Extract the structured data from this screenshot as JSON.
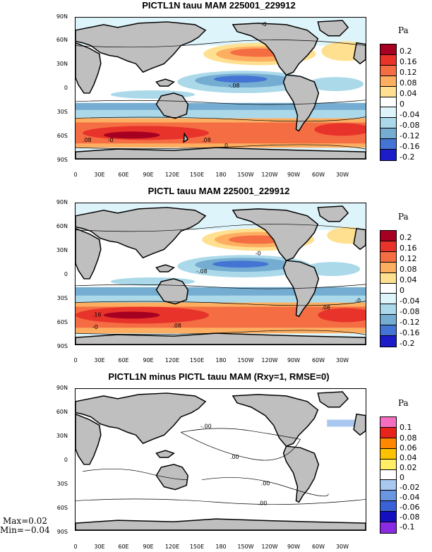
{
  "panels": [
    {
      "title": "PICTL1N tauu MAM 225001_229912",
      "unit": "Pa",
      "levels": [
        "0.2",
        "0.16",
        "0.12",
        "0.08",
        "0.04",
        "0",
        "-0.04",
        "-0.08",
        "-0.12",
        "-0.16",
        "-0.2"
      ],
      "colors": [
        "#a50021",
        "#e8332b",
        "#f46d43",
        "#fdae61",
        "#fee090",
        "#ffffff",
        "#def4fb",
        "#abd9e9",
        "#74add1",
        "#4575d4",
        "#1c1cc8"
      ],
      "contour_labels": [
        "-0",
        "-.08",
        ".08",
        "-0",
        ".08",
        "0"
      ]
    },
    {
      "title": "PICTL tauu MAM 225001_229912",
      "unit": "Pa",
      "levels": [
        "0.2",
        "0.16",
        "0.12",
        "0.08",
        "0.04",
        "0",
        "-0.04",
        "-0.08",
        "-0.12",
        "-0.16",
        "-0.2"
      ],
      "colors": [
        "#a50021",
        "#e8332b",
        "#f46d43",
        "#fdae61",
        "#fee090",
        "#ffffff",
        "#def4fb",
        "#abd9e9",
        "#74add1",
        "#4575d4",
        "#1c1cc8"
      ],
      "contour_labels": [
        "-0",
        "-.08",
        ".16",
        "-0",
        ".08",
        ".08",
        "-0"
      ]
    },
    {
      "title": "PICTL1N minus PICTL tauu MAM (Rxy=1, RMSE=0)",
      "unit": "Pa",
      "levels": [
        "0.1",
        "0.08",
        "0.06",
        "0.04",
        "0.02",
        "0",
        "-0.02",
        "-0.04",
        "-0.06",
        "-0.08",
        "-0.1"
      ],
      "colors": [
        "#f56fc0",
        "#e8231c",
        "#ff8800",
        "#ffc200",
        "#ffee66",
        "#ffffff",
        "#a8c8f0",
        "#6a95e0",
        "#3a62d6",
        "#1410c0",
        "#8a2be2"
      ],
      "contour_labels": [
        "-.00",
        ".00",
        ".00",
        ".00"
      ]
    }
  ],
  "lat_ticks": [
    "90N",
    "60N",
    "30N",
    "0",
    "30S",
    "60S",
    "90S"
  ],
  "lon_ticks": [
    "0",
    "30E",
    "60E",
    "90E",
    "120E",
    "150E",
    "180",
    "150W",
    "120W",
    "90W",
    "60W",
    "30W"
  ],
  "stats": {
    "max": "Max=0.02",
    "min": "Min=−0.04"
  }
}
